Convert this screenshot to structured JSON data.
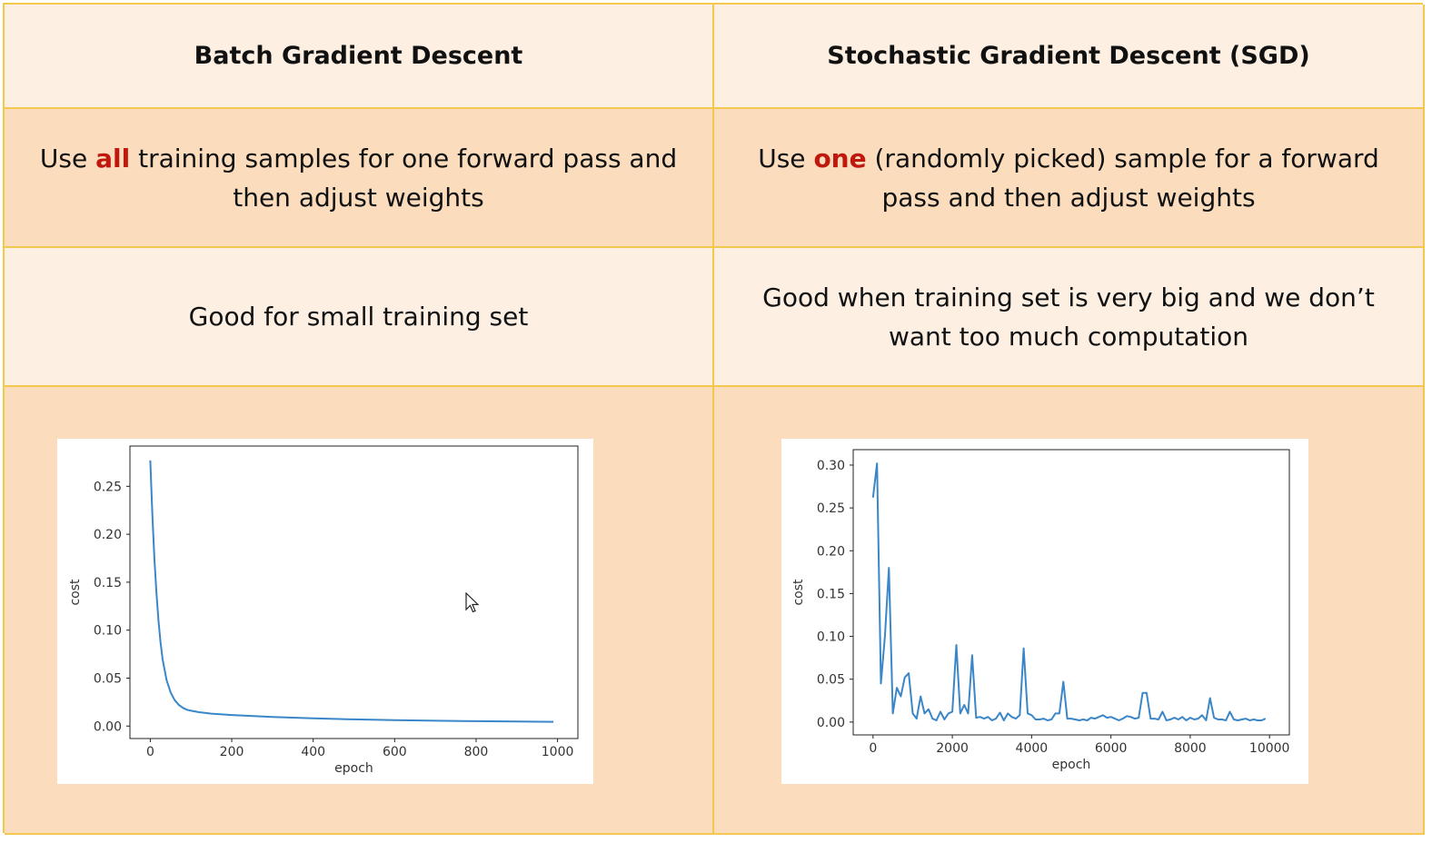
{
  "table": {
    "header": {
      "batch": "Batch Gradient Descent",
      "sgd": "Stochastic Gradient Descent (SGD)"
    },
    "row1": {
      "batch": {
        "before": "Use ",
        "highlight": "all",
        "after": " training samples for one forward pass and then adjust weights"
      },
      "sgd": {
        "before": "Use ",
        "highlight": "one",
        "after": " (randomly picked) sample for a forward pass and then adjust weights"
      }
    },
    "row2": {
      "batch": "Good for small training set",
      "sgd": "Good when training set is very big and we don’t want too much computation"
    }
  },
  "colors": {
    "border": "#f2c94c",
    "header_bg": "#fdefe2",
    "row_bg": "#fbdcbd",
    "highlight": "#c0180c",
    "line": "#3a86c8"
  },
  "chart_data": [
    {
      "type": "line",
      "title": "",
      "xlabel": "epoch",
      "ylabel": "cost",
      "xlim": [
        -50,
        1050
      ],
      "ylim": [
        -0.013,
        0.292
      ],
      "xticks": [
        0,
        200,
        400,
        600,
        800,
        1000
      ],
      "yticks": [
        0.0,
        0.05,
        0.1,
        0.15,
        0.2,
        0.25
      ],
      "xtick_labels": [
        "0",
        "200",
        "400",
        "600",
        "800",
        "1000"
      ],
      "ytick_labels": [
        "0.00",
        "0.05",
        "0.10",
        "0.15",
        "0.20",
        "0.25"
      ],
      "grid": false,
      "series": [
        {
          "x": [
            0,
            5,
            10,
            15,
            20,
            25,
            30,
            40,
            50,
            60,
            70,
            80,
            90,
            100,
            120,
            150,
            200,
            300,
            400,
            500,
            600,
            700,
            800,
            900,
            990
          ],
          "y": [
            0.277,
            0.22,
            0.175,
            0.14,
            0.11,
            0.088,
            0.07,
            0.048,
            0.035,
            0.027,
            0.022,
            0.019,
            0.017,
            0.016,
            0.0145,
            0.013,
            0.0115,
            0.0095,
            0.008,
            0.007,
            0.0062,
            0.0056,
            0.0051,
            0.0047,
            0.0044
          ]
        }
      ]
    },
    {
      "type": "line",
      "title": "",
      "xlabel": "epoch",
      "ylabel": "cost",
      "xlim": [
        -500,
        10500
      ],
      "ylim": [
        -0.015,
        0.318
      ],
      "xticks": [
        0,
        2000,
        4000,
        6000,
        8000,
        10000
      ],
      "yticks": [
        0.0,
        0.05,
        0.1,
        0.15,
        0.2,
        0.25,
        0.3
      ],
      "xtick_labels": [
        "0",
        "2000",
        "4000",
        "6000",
        "8000",
        "10000"
      ],
      "ytick_labels": [
        "0.00",
        "0.05",
        "0.10",
        "0.15",
        "0.20",
        "0.25",
        "0.30"
      ],
      "grid": false,
      "series": [
        {
          "x": [
            0,
            100,
            200,
            300,
            400,
            500,
            600,
            700,
            800,
            900,
            1000,
            1100,
            1200,
            1300,
            1400,
            1500,
            1600,
            1700,
            1800,
            1900,
            2000,
            2100,
            2200,
            2300,
            2400,
            2500,
            2600,
            2700,
            2800,
            2900,
            3000,
            3100,
            3200,
            3300,
            3400,
            3500,
            3600,
            3700,
            3800,
            3900,
            4000,
            4100,
            4200,
            4300,
            4400,
            4500,
            4600,
            4700,
            4800,
            4900,
            5000,
            5100,
            5200,
            5300,
            5400,
            5500,
            5600,
            5700,
            5800,
            5900,
            6000,
            6100,
            6200,
            6300,
            6400,
            6500,
            6600,
            6700,
            6800,
            6900,
            7000,
            7100,
            7200,
            7300,
            7400,
            7500,
            7600,
            7700,
            7800,
            7900,
            8000,
            8100,
            8200,
            8300,
            8400,
            8500,
            8600,
            8700,
            8800,
            8900,
            9000,
            9100,
            9200,
            9300,
            9400,
            9500,
            9600,
            9700,
            9800,
            9900
          ],
          "y": [
            0.262,
            0.302,
            0.045,
            0.1,
            0.18,
            0.01,
            0.04,
            0.03,
            0.052,
            0.057,
            0.01,
            0.004,
            0.03,
            0.01,
            0.015,
            0.004,
            0.002,
            0.012,
            0.003,
            0.01,
            0.012,
            0.09,
            0.01,
            0.02,
            0.01,
            0.078,
            0.005,
            0.006,
            0.004,
            0.006,
            0.002,
            0.004,
            0.011,
            0.002,
            0.01,
            0.006,
            0.004,
            0.008,
            0.086,
            0.01,
            0.008,
            0.003,
            0.003,
            0.004,
            0.002,
            0.003,
            0.01,
            0.01,
            0.047,
            0.004,
            0.004,
            0.003,
            0.002,
            0.003,
            0.002,
            0.005,
            0.004,
            0.006,
            0.008,
            0.005,
            0.006,
            0.004,
            0.002,
            0.004,
            0.007,
            0.006,
            0.004,
            0.005,
            0.034,
            0.034,
            0.004,
            0.004,
            0.003,
            0.012,
            0.002,
            0.003,
            0.005,
            0.003,
            0.006,
            0.002,
            0.005,
            0.003,
            0.004,
            0.008,
            0.002,
            0.028,
            0.005,
            0.003,
            0.003,
            0.002,
            0.012,
            0.003,
            0.002,
            0.003,
            0.004,
            0.002,
            0.003,
            0.002,
            0.002,
            0.004
          ]
        }
      ]
    }
  ]
}
